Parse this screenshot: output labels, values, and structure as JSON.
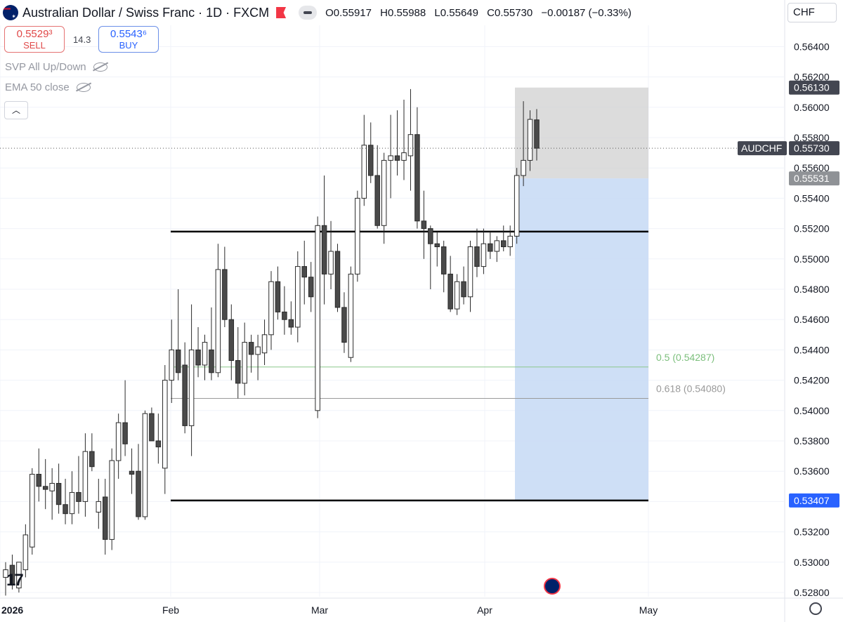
{
  "header": {
    "symbol_title": "Australian Dollar / Swiss Franc · 1D · FXCM",
    "ohlc": [
      {
        "key": "O",
        "value": "0.55917"
      },
      {
        "key": "H",
        "value": "0.55988"
      },
      {
        "key": "L",
        "value": "0.55649"
      },
      {
        "key": "C",
        "value": "0.55730"
      }
    ],
    "change": "−0.00187 (−0.33%)",
    "currency": "CHF"
  },
  "trade": {
    "sell_price": "0.5529³",
    "sell_label": "SELL",
    "spread": "14.3",
    "buy_price": "0.5543⁶",
    "buy_label": "BUY"
  },
  "indicators": [
    {
      "label": "SVP All Up/Down"
    },
    {
      "label": "EMA 50 close"
    }
  ],
  "collapse_glyph": "︿",
  "logo": "17",
  "colors": {
    "up_body": "#ffffff",
    "down_body": "#4a4a4a",
    "wick": "#2a2a2a",
    "target_zone": "#c9dcf5",
    "stop_zone": "#d0d0d0",
    "fib_05": "#8cc88c",
    "fib_0618": "#9a9a9a"
  },
  "icons": [
    "au-flag-icon",
    "market-flag-icon",
    "eye-off-icon",
    "chevron-up-icon",
    "settings-icon",
    "tradingview-logo-icon"
  ],
  "chart_data": {
    "type": "candlestick",
    "ylim": [
      0.5276,
      0.5662
    ],
    "y_ticks": [
      "0.52800",
      "0.53000",
      "0.53200",
      "0.53400",
      "0.53600",
      "0.53800",
      "0.54000",
      "0.54200",
      "0.54400",
      "0.54600",
      "0.54800",
      "0.55000",
      "0.55200",
      "0.55400",
      "0.55600",
      "0.55800",
      "0.56000",
      "0.56200",
      "0.56400"
    ],
    "x_labels": [
      "2026",
      "Feb",
      "Mar",
      "Apr",
      "May"
    ],
    "price_tags": [
      {
        "label": "0.56130",
        "value": 0.5613,
        "style": "dark"
      },
      {
        "label": "0.55730",
        "value": 0.5573,
        "style": "dark",
        "prefix": "AUDCHF"
      },
      {
        "label": "0.55531",
        "value": 0.55531,
        "style": "gray"
      },
      {
        "label": "0.53407",
        "value": 0.53407,
        "style": "blue"
      }
    ],
    "fib_levels": [
      {
        "label": "0.5 (0.54287)",
        "value": 0.54287
      },
      {
        "label": "0.618 (0.54080)",
        "value": 0.5408
      }
    ],
    "horizontal_lines": [
      0.5518,
      0.53407
    ],
    "position": {
      "entry": 0.55531,
      "stop": 0.5613,
      "target": 0.53407
    },
    "candles": [
      {
        "o": 0.529,
        "h": 0.53,
        "l": 0.5278,
        "c": 0.5295
      },
      {
        "o": 0.5298,
        "h": 0.5305,
        "l": 0.5282,
        "c": 0.5285
      },
      {
        "o": 0.5283,
        "h": 0.53,
        "l": 0.528,
        "c": 0.53
      },
      {
        "o": 0.5295,
        "h": 0.5325,
        "l": 0.529,
        "c": 0.5318
      },
      {
        "o": 0.531,
        "h": 0.5362,
        "l": 0.5305,
        "c": 0.5358
      },
      {
        "o": 0.5358,
        "h": 0.5375,
        "l": 0.534,
        "c": 0.535
      },
      {
        "o": 0.535,
        "h": 0.5368,
        "l": 0.5335,
        "c": 0.5348
      },
      {
        "o": 0.5347,
        "h": 0.5362,
        "l": 0.5328,
        "c": 0.5352
      },
      {
        "o": 0.5352,
        "h": 0.5365,
        "l": 0.5332,
        "c": 0.5338
      },
      {
        "o": 0.5338,
        "h": 0.5355,
        "l": 0.5325,
        "c": 0.5332
      },
      {
        "o": 0.5332,
        "h": 0.536,
        "l": 0.5325,
        "c": 0.5346
      },
      {
        "o": 0.5346,
        "h": 0.537,
        "l": 0.5332,
        "c": 0.534
      },
      {
        "o": 0.534,
        "h": 0.5385,
        "l": 0.533,
        "c": 0.5373
      },
      {
        "o": 0.5373,
        "h": 0.5385,
        "l": 0.536,
        "c": 0.5363
      },
      {
        "o": 0.5333,
        "h": 0.5355,
        "l": 0.5322,
        "c": 0.534
      },
      {
        "o": 0.5343,
        "h": 0.5355,
        "l": 0.5305,
        "c": 0.5315
      },
      {
        "o": 0.5315,
        "h": 0.5375,
        "l": 0.5308,
        "c": 0.5367
      },
      {
        "o": 0.5367,
        "h": 0.5398,
        "l": 0.5355,
        "c": 0.5392
      },
      {
        "o": 0.5392,
        "h": 0.542,
        "l": 0.537,
        "c": 0.5378
      },
      {
        "o": 0.536,
        "h": 0.5375,
        "l": 0.5345,
        "c": 0.5358
      },
      {
        "o": 0.536,
        "h": 0.5378,
        "l": 0.5328,
        "c": 0.533
      },
      {
        "o": 0.533,
        "h": 0.54,
        "l": 0.5328,
        "c": 0.5398
      },
      {
        "o": 0.5398,
        "h": 0.5402,
        "l": 0.538,
        "c": 0.538
      },
      {
        "o": 0.538,
        "h": 0.5398,
        "l": 0.5365,
        "c": 0.5376
      },
      {
        "o": 0.5362,
        "h": 0.543,
        "l": 0.5345,
        "c": 0.542
      },
      {
        "o": 0.542,
        "h": 0.546,
        "l": 0.5405,
        "c": 0.544
      },
      {
        "o": 0.544,
        "h": 0.548,
        "l": 0.542,
        "c": 0.5425
      },
      {
        "o": 0.543,
        "h": 0.5445,
        "l": 0.5385,
        "c": 0.539
      },
      {
        "o": 0.539,
        "h": 0.547,
        "l": 0.537,
        "c": 0.544
      },
      {
        "o": 0.544,
        "h": 0.5455,
        "l": 0.5422,
        "c": 0.543
      },
      {
        "o": 0.543,
        "h": 0.545,
        "l": 0.542,
        "c": 0.5445
      },
      {
        "o": 0.544,
        "h": 0.5468,
        "l": 0.542,
        "c": 0.5425
      },
      {
        "o": 0.5425,
        "h": 0.551,
        "l": 0.5422,
        "c": 0.5493
      },
      {
        "o": 0.5493,
        "h": 0.5508,
        "l": 0.5455,
        "c": 0.546
      },
      {
        "o": 0.546,
        "h": 0.547,
        "l": 0.542,
        "c": 0.5433
      },
      {
        "o": 0.5433,
        "h": 0.5455,
        "l": 0.5408,
        "c": 0.5418
      },
      {
        "o": 0.5418,
        "h": 0.5458,
        "l": 0.541,
        "c": 0.5445
      },
      {
        "o": 0.5445,
        "h": 0.545,
        "l": 0.5425,
        "c": 0.5437
      },
      {
        "o": 0.5437,
        "h": 0.545,
        "l": 0.542,
        "c": 0.5442
      },
      {
        "o": 0.5438,
        "h": 0.546,
        "l": 0.543,
        "c": 0.545
      },
      {
        "o": 0.545,
        "h": 0.5492,
        "l": 0.544,
        "c": 0.5485
      },
      {
        "o": 0.5485,
        "h": 0.5495,
        "l": 0.546,
        "c": 0.5465
      },
      {
        "o": 0.5465,
        "h": 0.5482,
        "l": 0.545,
        "c": 0.546
      },
      {
        "o": 0.546,
        "h": 0.5472,
        "l": 0.545,
        "c": 0.5455
      },
      {
        "o": 0.5455,
        "h": 0.5505,
        "l": 0.5445,
        "c": 0.5495
      },
      {
        "o": 0.5495,
        "h": 0.5512,
        "l": 0.547,
        "c": 0.5488
      },
      {
        "o": 0.5488,
        "h": 0.5498,
        "l": 0.5465,
        "c": 0.5475
      },
      {
        "o": 0.54,
        "h": 0.5528,
        "l": 0.5395,
        "c": 0.5522
      },
      {
        "o": 0.5522,
        "h": 0.5555,
        "l": 0.547,
        "c": 0.549
      },
      {
        "o": 0.549,
        "h": 0.5525,
        "l": 0.548,
        "c": 0.5505
      },
      {
        "o": 0.5505,
        "h": 0.551,
        "l": 0.5465,
        "c": 0.5468
      },
      {
        "o": 0.5468,
        "h": 0.5478,
        "l": 0.5438,
        "c": 0.5445
      },
      {
        "o": 0.5435,
        "h": 0.5495,
        "l": 0.5432,
        "c": 0.549
      },
      {
        "o": 0.549,
        "h": 0.5545,
        "l": 0.5485,
        "c": 0.554
      },
      {
        "o": 0.554,
        "h": 0.5595,
        "l": 0.5535,
        "c": 0.5575
      },
      {
        "o": 0.5575,
        "h": 0.559,
        "l": 0.555,
        "c": 0.5555
      },
      {
        "o": 0.5555,
        "h": 0.5575,
        "l": 0.552,
        "c": 0.5522
      },
      {
        "o": 0.5522,
        "h": 0.557,
        "l": 0.551,
        "c": 0.5565
      },
      {
        "o": 0.5565,
        "h": 0.5595,
        "l": 0.554,
        "c": 0.5568
      },
      {
        "o": 0.5568,
        "h": 0.5598,
        "l": 0.5555,
        "c": 0.5565
      },
      {
        "o": 0.5565,
        "h": 0.5605,
        "l": 0.5552,
        "c": 0.557
      },
      {
        "o": 0.5568,
        "h": 0.5612,
        "l": 0.5545,
        "c": 0.5582
      },
      {
        "o": 0.5582,
        "h": 0.56,
        "l": 0.552,
        "c": 0.5525
      },
      {
        "o": 0.5525,
        "h": 0.5545,
        "l": 0.55,
        "c": 0.552
      },
      {
        "o": 0.552,
        "h": 0.5522,
        "l": 0.548,
        "c": 0.551
      },
      {
        "o": 0.551,
        "h": 0.5518,
        "l": 0.5495,
        "c": 0.5508
      },
      {
        "o": 0.5508,
        "h": 0.5512,
        "l": 0.5478,
        "c": 0.549
      },
      {
        "o": 0.549,
        "h": 0.5502,
        "l": 0.5465,
        "c": 0.5467
      },
      {
        "o": 0.5467,
        "h": 0.549,
        "l": 0.5463,
        "c": 0.5485
      },
      {
        "o": 0.5485,
        "h": 0.5495,
        "l": 0.547,
        "c": 0.5475
      },
      {
        "o": 0.5475,
        "h": 0.5512,
        "l": 0.5465,
        "c": 0.5508
      },
      {
        "o": 0.5508,
        "h": 0.552,
        "l": 0.5488,
        "c": 0.5495
      },
      {
        "o": 0.5495,
        "h": 0.552,
        "l": 0.549,
        "c": 0.551
      },
      {
        "o": 0.551,
        "h": 0.5518,
        "l": 0.55,
        "c": 0.5505
      },
      {
        "o": 0.5505,
        "h": 0.5515,
        "l": 0.5498,
        "c": 0.5512
      },
      {
        "o": 0.5512,
        "h": 0.5522,
        "l": 0.5505,
        "c": 0.5508
      },
      {
        "o": 0.5508,
        "h": 0.5522,
        "l": 0.5502,
        "c": 0.5515
      },
      {
        "o": 0.5515,
        "h": 0.556,
        "l": 0.551,
        "c": 0.5555
      },
      {
        "o": 0.5555,
        "h": 0.5604,
        "l": 0.5548,
        "c": 0.5565
      },
      {
        "o": 0.5565,
        "h": 0.5598,
        "l": 0.5558,
        "c": 0.5592
      },
      {
        "o": 0.55917,
        "h": 0.55988,
        "l": 0.55649,
        "c": 0.5573
      }
    ]
  }
}
